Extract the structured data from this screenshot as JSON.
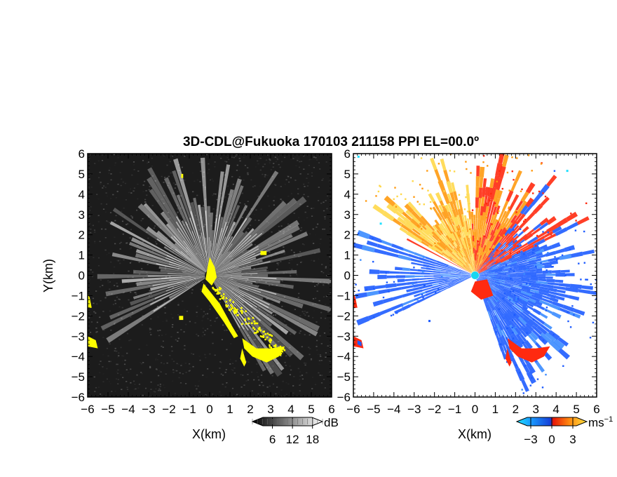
{
  "title": "3D-CDL@Fukuoka 170103 211158 PPI EL=00.0º",
  "colors": {
    "echo_yellow": "#ffff00",
    "approach_blue": "#1e5cff",
    "recede_red": "#ff2a10",
    "recede_orange": "#ff9a10",
    "recede_yellow": "#ffd84a",
    "radar_site": "#19d6f0"
  },
  "chart_data": [
    {
      "type": "heatmap",
      "panel": "snr",
      "xlabel": "X(km)",
      "ylabel": "Y(km)",
      "xlim": [
        -6,
        6
      ],
      "ylim": [
        -6,
        6
      ],
      "xticks": [
        "−6",
        "−5",
        "−4",
        "−3",
        "−2",
        "−1",
        "0",
        "1",
        "2",
        "3",
        "4",
        "5",
        "6"
      ],
      "yticks": [
        "6",
        "5",
        "4",
        "3",
        "2",
        "1",
        "0",
        "−1",
        "−2",
        "−3",
        "−4",
        "−5",
        "−6"
      ],
      "colorbar": {
        "unit": "dB",
        "tick_labels": [
          "6",
          "12",
          "18"
        ],
        "tick_values": [
          6,
          12,
          18
        ],
        "range": [
          0,
          21
        ],
        "colormap": "gray"
      }
    },
    {
      "type": "heatmap",
      "panel": "radial_velocity",
      "xlabel": "X(km)",
      "ylabel": "",
      "xlim": [
        -6,
        6
      ],
      "ylim": [
        -6,
        6
      ],
      "xticks": [
        "−6",
        "−5",
        "−4",
        "−3",
        "−2",
        "−1",
        "0",
        "1",
        "2",
        "3",
        "4",
        "5",
        "6"
      ],
      "yticks": [
        "6",
        "5",
        "4",
        "3",
        "2",
        "1",
        "0",
        "−1",
        "−2",
        "−3",
        "−4",
        "−5",
        "−6"
      ],
      "colorbar": {
        "unit": "ms",
        "unit_exponent": "−1",
        "tick_labels": [
          "−3",
          "0",
          "3"
        ],
        "tick_values": [
          -3,
          0,
          3
        ],
        "range": [
          -5,
          5
        ],
        "colormap": "cyan-blue-red-orange-yellow"
      }
    }
  ]
}
